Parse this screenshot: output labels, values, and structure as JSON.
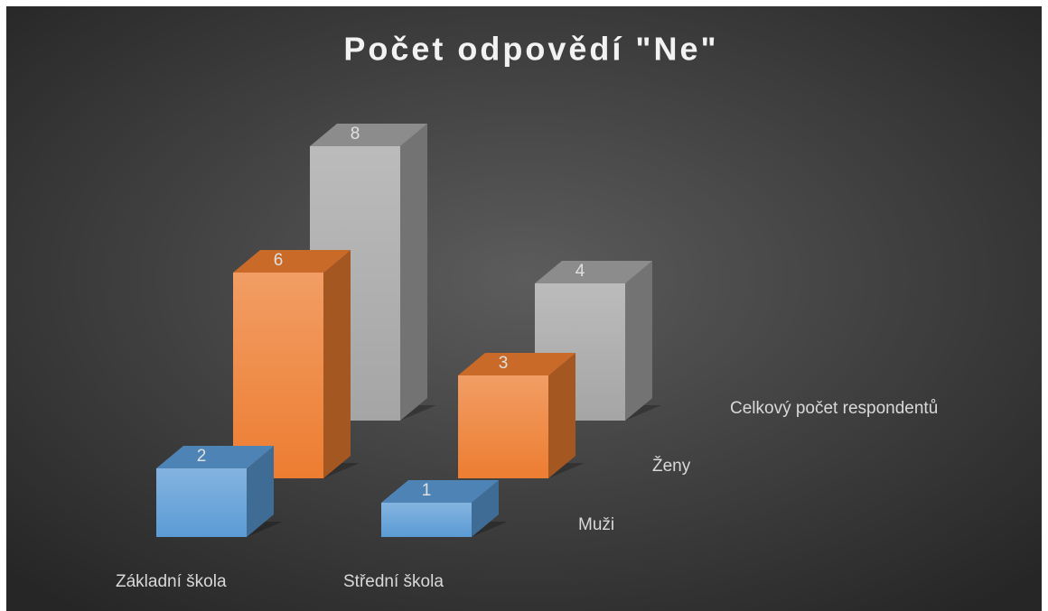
{
  "chart_data": {
    "type": "bar3d",
    "title": "Počet odpovědí \"Ne\"",
    "categories": [
      "Základní škola",
      "Střední škola"
    ],
    "series": [
      {
        "name": "Muži",
        "color": "#5b9bd5",
        "values": [
          2,
          1
        ]
      },
      {
        "name": "Ženy",
        "color": "#ed7d31",
        "values": [
          6,
          3
        ]
      },
      {
        "name": "Celkový počet respondentů",
        "color": "#a5a5a5",
        "values": [
          8,
          4
        ]
      }
    ]
  }
}
